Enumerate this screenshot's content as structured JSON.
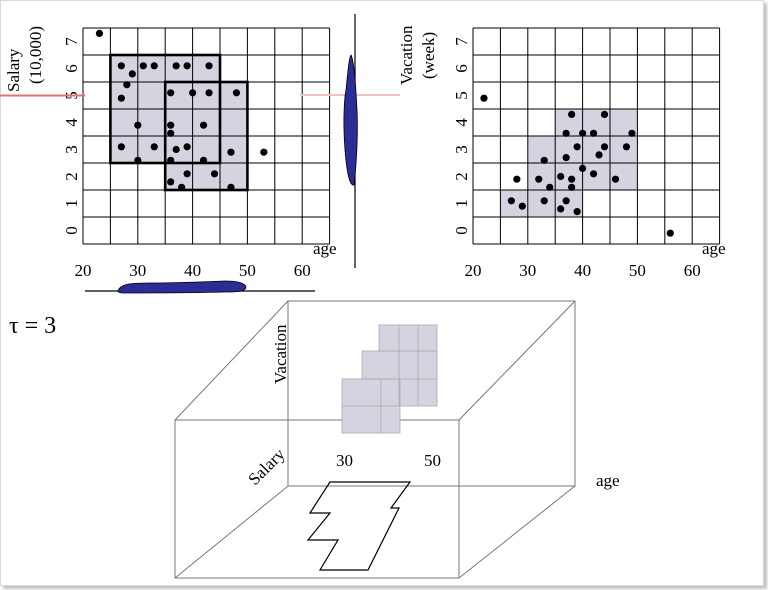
{
  "colors": {
    "grid": "#000000",
    "cluster_fill": "#d4d4e0",
    "density": "#2c2c96",
    "highlight": "#e87070"
  },
  "tau_label": "τ = 3",
  "plot_left": {
    "ylabel_line1": "Salary",
    "ylabel_line2": "(10,000)",
    "xlabel": "age",
    "x_ticks": [
      "20",
      "30",
      "40",
      "50",
      "60"
    ],
    "y_ticks": [
      "0",
      "1",
      "2",
      "3",
      "4",
      "5",
      "6",
      "7"
    ],
    "highlight_y": 5.5,
    "dense_units": [
      [
        25,
        6
      ],
      [
        30,
        6
      ],
      [
        35,
        6
      ],
      [
        40,
        6
      ],
      [
        25,
        5
      ],
      [
        30,
        5
      ],
      [
        35,
        5
      ],
      [
        40,
        5
      ],
      [
        45,
        5
      ],
      [
        25,
        4
      ],
      [
        30,
        4
      ],
      [
        35,
        4
      ],
      [
        40,
        4
      ],
      [
        45,
        4
      ],
      [
        25,
        3
      ],
      [
        30,
        3
      ],
      [
        35,
        3
      ],
      [
        40,
        3
      ],
      [
        45,
        3
      ],
      [
        35,
        2
      ],
      [
        40,
        2
      ],
      [
        45,
        2
      ]
    ],
    "cluster_boxes": [
      {
        "x0": 25,
        "x1": 45,
        "y0": 3,
        "y1": 7
      },
      {
        "x0": 35,
        "x1": 50,
        "y0": 2,
        "y1": 6
      }
    ],
    "points": [
      [
        23,
        7.8
      ],
      [
        27,
        6.6
      ],
      [
        29,
        6.3
      ],
      [
        28,
        5.9
      ],
      [
        27,
        5.4
      ],
      [
        31,
        6.6
      ],
      [
        33,
        6.6
      ],
      [
        37,
        6.6
      ],
      [
        39,
        6.6
      ],
      [
        43,
        6.6
      ],
      [
        36,
        5.6
      ],
      [
        40,
        5.6
      ],
      [
        43,
        5.6
      ],
      [
        48,
        5.6
      ],
      [
        30,
        4.4
      ],
      [
        36,
        4.4
      ],
      [
        42,
        4.4
      ],
      [
        36,
        4.1
      ],
      [
        27,
        3.6
      ],
      [
        33,
        3.6
      ],
      [
        37,
        3.5
      ],
      [
        39,
        3.6
      ],
      [
        30,
        3.1
      ],
      [
        36,
        3.1
      ],
      [
        42,
        3.1
      ],
      [
        47,
        3.4
      ],
      [
        53,
        3.4
      ],
      [
        39,
        2.6
      ],
      [
        44,
        2.6
      ],
      [
        36,
        2.3
      ],
      [
        38,
        2.1
      ],
      [
        47,
        2.1
      ]
    ]
  },
  "plot_right": {
    "ylabel_line1": "Vacation",
    "ylabel_line2": "(week)",
    "xlabel": "age",
    "x_ticks": [
      "20",
      "30",
      "40",
      "50",
      "60"
    ],
    "y_ticks": [
      "0",
      "1",
      "2",
      "3",
      "4",
      "5",
      "6",
      "7"
    ],
    "dense_units": [
      [
        35,
        4
      ],
      [
        40,
        4
      ],
      [
        45,
        4
      ],
      [
        30,
        3
      ],
      [
        35,
        3
      ],
      [
        40,
        3
      ],
      [
        45,
        3
      ],
      [
        30,
        2
      ],
      [
        35,
        2
      ],
      [
        40,
        2
      ],
      [
        45,
        2
      ],
      [
        25,
        1
      ],
      [
        30,
        1
      ],
      [
        35,
        1
      ]
    ],
    "points": [
      [
        22,
        5.4
      ],
      [
        38,
        4.8
      ],
      [
        44,
        4.8
      ],
      [
        37,
        4.1
      ],
      [
        40,
        4.1
      ],
      [
        42,
        4.1
      ],
      [
        49,
        4.1
      ],
      [
        39,
        3.6
      ],
      [
        44,
        3.6
      ],
      [
        48,
        3.6
      ],
      [
        33,
        3.1
      ],
      [
        37,
        3.2
      ],
      [
        43,
        3.3
      ],
      [
        40,
        2.8
      ],
      [
        42,
        2.6
      ],
      [
        36,
        2.5
      ],
      [
        38,
        2.4
      ],
      [
        28,
        2.4
      ],
      [
        32,
        2.4
      ],
      [
        34,
        2.1
      ],
      [
        38,
        2.1
      ],
      [
        46,
        2.4
      ],
      [
        27,
        1.6
      ],
      [
        29,
        1.4
      ],
      [
        33,
        1.6
      ],
      [
        37,
        1.6
      ],
      [
        36,
        1.3
      ],
      [
        39,
        1.2
      ],
      [
        56,
        0.4
      ]
    ]
  },
  "cube": {
    "vacation_label": "Vacation",
    "salary_label": "Salary",
    "age_label": "age",
    "tick_30": "30",
    "tick_50": "50"
  }
}
